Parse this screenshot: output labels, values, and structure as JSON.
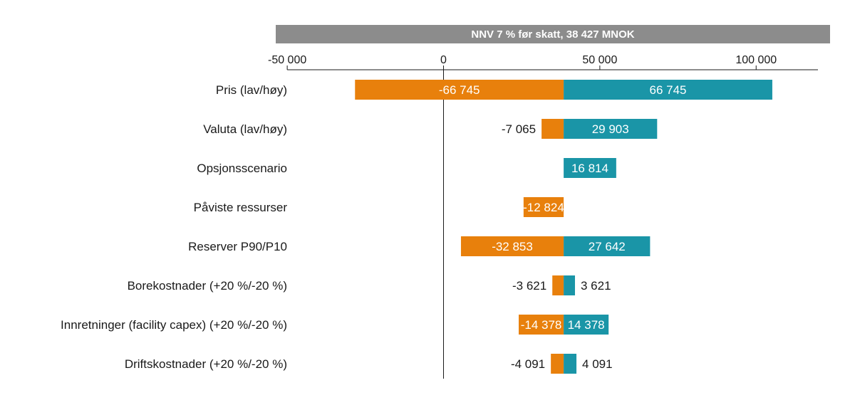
{
  "colors": {
    "low": "#E8800C",
    "high": "#1A95A7",
    "banner": "#8C8C8C",
    "text": "#1a1a1a",
    "inside_label": "#ffffff"
  },
  "chart_data": {
    "type": "bar",
    "subtype": "tornado",
    "title": "NNV 7 % før skatt, 38 427 MNOK",
    "base_value": 38427,
    "xlim": [
      -50000,
      120000
    ],
    "x_ticks": [
      -50000,
      0,
      50000,
      100000
    ],
    "x_tick_labels": [
      "-50 000",
      "0",
      "50 000",
      "100 000"
    ],
    "categories": [
      "Pris (lav/høy)",
      "Valuta (lav/høy)",
      "Opsjonsscenario",
      "Påviste ressurser",
      "Reserver P90/P10",
      "Borekostnader (+20 %/-20 %)",
      "Innretninger (facility capex) (+20 %/-20 %)",
      "Driftskostnader (+20 %/-20 %)"
    ],
    "series": [
      {
        "name": "low",
        "values": [
          -66745,
          -7065,
          null,
          -12824,
          -32853,
          -3621,
          -14378,
          -4091
        ],
        "labels": [
          "-66 745",
          "-7 065",
          null,
          "-12 824",
          "-32 853",
          "-3 621",
          "-14 378",
          "-4 091"
        ]
      },
      {
        "name": "high",
        "values": [
          66745,
          29903,
          16814,
          null,
          27642,
          3621,
          14378,
          4091
        ],
        "labels": [
          "66 745",
          "29 903",
          "16 814",
          null,
          "27 642",
          "3 621",
          "14 378",
          "4 091"
        ]
      }
    ],
    "grid": false,
    "legend": "none"
  }
}
